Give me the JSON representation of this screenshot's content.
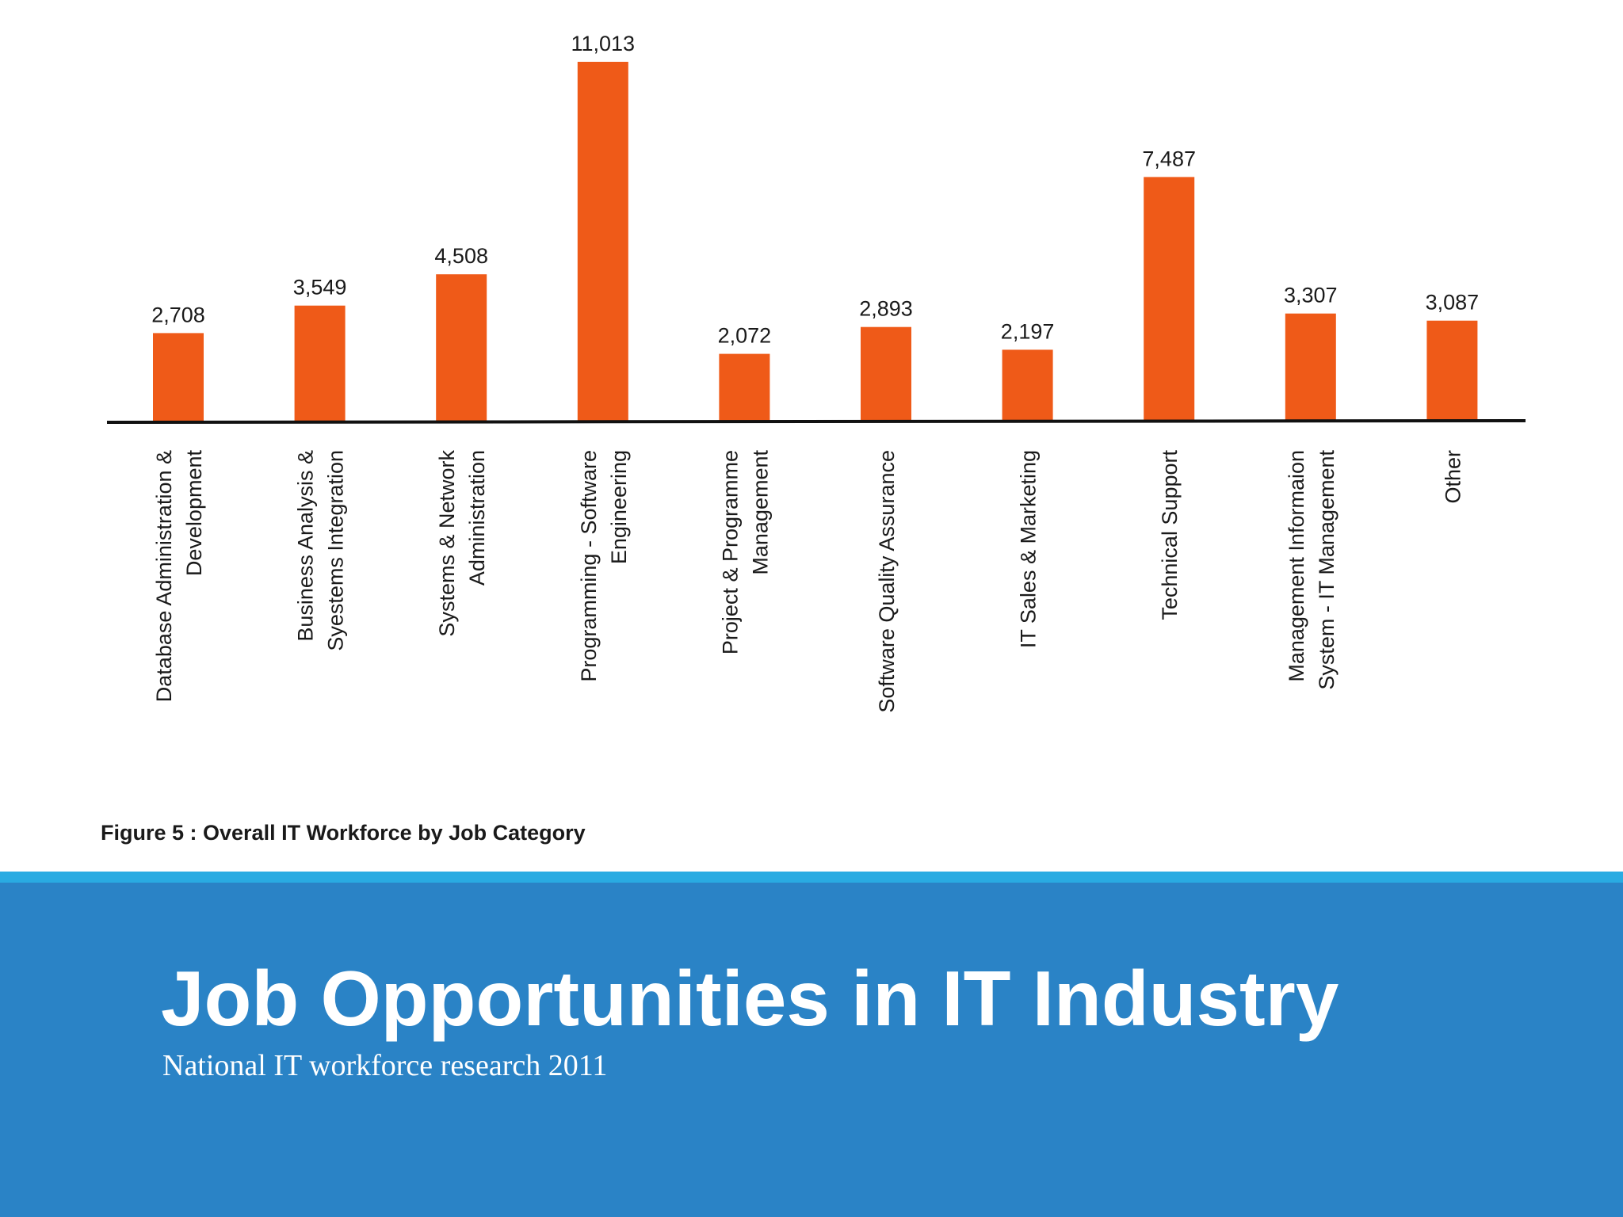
{
  "slide": {
    "title": "Job Opportunities in IT Industry",
    "subtitle": "National IT workforce research 2011"
  },
  "colors": {
    "bar": "#ef5a18",
    "axis": "#111111",
    "band": "#2a83c6",
    "stripe": "#29abe2"
  },
  "chart_data": {
    "type": "bar",
    "title": "Figure 5 : Overall IT Workforce by Job Category",
    "xlabel": "",
    "ylabel": "",
    "ylim": [
      0,
      11013
    ],
    "grid": false,
    "categories": [
      [
        "Database Administration &",
        "Development"
      ],
      [
        "Business Analysis &",
        "Syestems Integration"
      ],
      [
        "Systems & Network",
        "Administration"
      ],
      [
        "Programming - Software",
        "Engineering"
      ],
      [
        "Project & Programme",
        "Management"
      ],
      [
        "Software Quality Assurance"
      ],
      [
        "IT Sales & Marketing"
      ],
      [
        "Technical Support"
      ],
      [
        "Management Informaion",
        "System - IT Management"
      ],
      [
        "Other"
      ]
    ],
    "values": [
      2708,
      3549,
      4508,
      11013,
      2072,
      2893,
      2197,
      7487,
      3307,
      3087
    ],
    "value_labels": [
      "2,708",
      "3,549",
      "4,508",
      "11,013",
      "2,072",
      "2,893",
      "2,197",
      "7,487",
      "3,307",
      "3,087"
    ]
  }
}
